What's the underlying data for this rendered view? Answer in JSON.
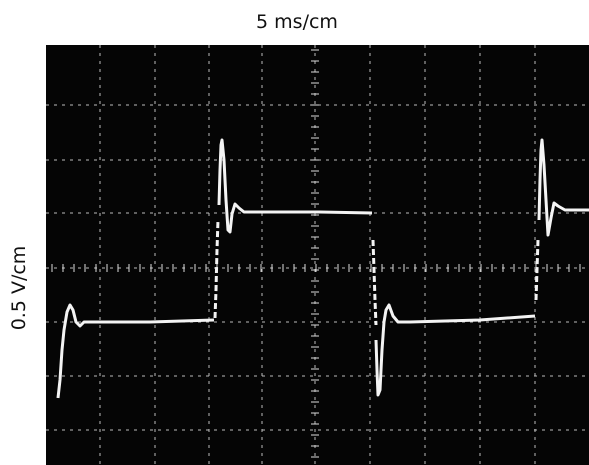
{
  "header": {
    "title": "5 ms/cm"
  },
  "axis": {
    "y_label": "0.5 V/cm"
  }
}
